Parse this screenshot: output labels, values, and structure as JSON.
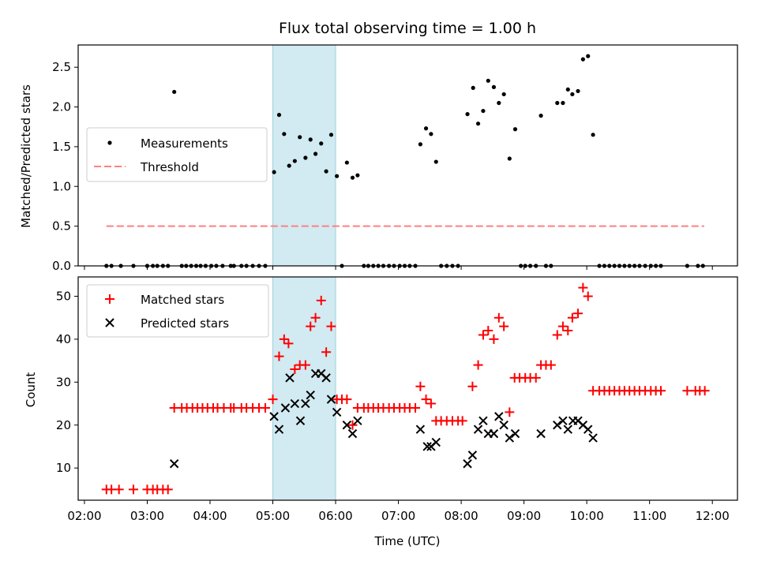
{
  "chart_data": [
    {
      "type": "scatter",
      "title": "Flux total observing time = 1.00 h",
      "ylabel": "Matched/Predicted stars",
      "xlabel": "",
      "xlim": [
        1.9,
        12.4
      ],
      "ylim": [
        0,
        2.78
      ],
      "yticks": [
        "0.0",
        "0.5",
        "1.0",
        "1.5",
        "2.0",
        "2.5"
      ],
      "highlight_span": {
        "from": 5.0,
        "to": 6.0,
        "color": "#add8e6"
      },
      "series": [
        {
          "name": "Measurements",
          "marker": "dot",
          "color": "#000000",
          "points": [
            [
              2.35,
              0
            ],
            [
              2.43,
              0
            ],
            [
              2.58,
              0
            ],
            [
              2.78,
              0
            ],
            [
              3.0,
              0
            ],
            [
              3.09,
              0
            ],
            [
              3.16,
              0
            ],
            [
              3.25,
              0
            ],
            [
              3.33,
              0
            ],
            [
              3.43,
              2.19
            ],
            [
              3.55,
              0
            ],
            [
              3.62,
              0
            ],
            [
              3.7,
              0
            ],
            [
              3.78,
              0
            ],
            [
              3.85,
              0
            ],
            [
              3.93,
              0
            ],
            [
              4.02,
              0
            ],
            [
              4.1,
              0
            ],
            [
              4.2,
              0
            ],
            [
              4.33,
              0
            ],
            [
              4.38,
              0
            ],
            [
              4.5,
              0
            ],
            [
              4.58,
              0
            ],
            [
              4.68,
              0
            ],
            [
              4.78,
              0
            ],
            [
              4.88,
              0
            ],
            [
              5.02,
              1.18
            ],
            [
              5.1,
              1.9
            ],
            [
              5.18,
              1.66
            ],
            [
              5.26,
              1.26
            ],
            [
              5.35,
              1.32
            ],
            [
              5.43,
              1.62
            ],
            [
              5.52,
              1.36
            ],
            [
              5.6,
              1.59
            ],
            [
              5.68,
              1.41
            ],
            [
              5.77,
              1.54
            ],
            [
              5.85,
              1.19
            ],
            [
              5.93,
              1.65
            ],
            [
              6.02,
              1.13
            ],
            [
              6.1,
              0
            ],
            [
              6.18,
              1.3
            ],
            [
              6.27,
              1.11
            ],
            [
              6.35,
              1.14
            ],
            [
              6.45,
              0
            ],
            [
              6.52,
              0
            ],
            [
              6.6,
              0
            ],
            [
              6.68,
              0
            ],
            [
              6.76,
              0
            ],
            [
              6.85,
              0
            ],
            [
              6.93,
              0
            ],
            [
              7.02,
              0
            ],
            [
              7.1,
              0
            ],
            [
              7.18,
              0
            ],
            [
              7.27,
              0
            ],
            [
              7.35,
              1.53
            ],
            [
              7.44,
              1.73
            ],
            [
              7.52,
              1.66
            ],
            [
              7.6,
              1.31
            ],
            [
              7.68,
              0
            ],
            [
              7.77,
              0
            ],
            [
              7.86,
              0
            ],
            [
              7.95,
              0
            ],
            [
              8.1,
              1.91
            ],
            [
              8.19,
              2.24
            ],
            [
              8.27,
              1.79
            ],
            [
              8.35,
              1.95
            ],
            [
              8.43,
              2.33
            ],
            [
              8.52,
              2.25
            ],
            [
              8.6,
              2.05
            ],
            [
              8.68,
              2.16
            ],
            [
              8.77,
              1.35
            ],
            [
              8.86,
              1.72
            ],
            [
              8.95,
              0
            ],
            [
              9.02,
              0
            ],
            [
              9.1,
              0
            ],
            [
              9.19,
              0
            ],
            [
              9.27,
              1.89
            ],
            [
              9.35,
              0
            ],
            [
              9.43,
              0
            ],
            [
              9.53,
              2.05
            ],
            [
              9.62,
              2.05
            ],
            [
              9.7,
              2.22
            ],
            [
              9.77,
              2.16
            ],
            [
              9.86,
              2.2
            ],
            [
              9.94,
              2.6
            ],
            [
              10.02,
              2.64
            ],
            [
              10.1,
              1.65
            ],
            [
              10.2,
              0
            ],
            [
              10.28,
              0
            ],
            [
              10.36,
              0
            ],
            [
              10.44,
              0
            ],
            [
              10.52,
              0
            ],
            [
              10.6,
              0
            ],
            [
              10.68,
              0
            ],
            [
              10.76,
              0
            ],
            [
              10.84,
              0
            ],
            [
              10.93,
              0
            ],
            [
              11.02,
              0
            ],
            [
              11.1,
              0
            ],
            [
              11.18,
              0
            ],
            [
              11.6,
              0
            ],
            [
              11.77,
              0
            ],
            [
              11.85,
              0
            ]
          ]
        },
        {
          "name": "Threshold",
          "marker": "dashed-line",
          "color": "#ff7f7f",
          "points": [
            [
              2.35,
              0.5
            ],
            [
              11.87,
              0.5
            ]
          ]
        }
      ],
      "legend_position": "center-left"
    },
    {
      "type": "scatter",
      "title": "",
      "xlabel": "Time (UTC)",
      "ylabel": "Count",
      "xlim": [
        1.9,
        12.4
      ],
      "ylim": [
        2.5,
        54.5
      ],
      "yticks": [
        "10",
        "20",
        "30",
        "40",
        "50"
      ],
      "xticks": [
        {
          "v": 2,
          "label": "02:00"
        },
        {
          "v": 3,
          "label": "03:00"
        },
        {
          "v": 4,
          "label": "04:00"
        },
        {
          "v": 5,
          "label": "05:00"
        },
        {
          "v": 6,
          "label": "06:00"
        },
        {
          "v": 7,
          "label": "07:00"
        },
        {
          "v": 8,
          "label": "08:00"
        },
        {
          "v": 9,
          "label": "09:00"
        },
        {
          "v": 10,
          "label": "10:00"
        },
        {
          "v": 11,
          "label": "11:00"
        },
        {
          "v": 12,
          "label": "12:00"
        }
      ],
      "highlight_span": {
        "from": 5.0,
        "to": 6.0,
        "color": "#add8e6"
      },
      "series": [
        {
          "name": "Matched stars",
          "marker": "plus",
          "color": "#ff0000",
          "points": [
            [
              2.35,
              5
            ],
            [
              2.43,
              5
            ],
            [
              2.55,
              5
            ],
            [
              2.78,
              5
            ],
            [
              3.0,
              5
            ],
            [
              3.09,
              5
            ],
            [
              3.16,
              5
            ],
            [
              3.25,
              5
            ],
            [
              3.33,
              5
            ],
            [
              3.43,
              24
            ],
            [
              3.55,
              24
            ],
            [
              3.63,
              24
            ],
            [
              3.72,
              24
            ],
            [
              3.8,
              24
            ],
            [
              3.88,
              24
            ],
            [
              3.96,
              24
            ],
            [
              4.05,
              24
            ],
            [
              4.12,
              24
            ],
            [
              4.22,
              24
            ],
            [
              4.33,
              24
            ],
            [
              4.38,
              24
            ],
            [
              4.5,
              24
            ],
            [
              4.58,
              24
            ],
            [
              4.68,
              24
            ],
            [
              4.78,
              24
            ],
            [
              4.88,
              24
            ],
            [
              5.0,
              26
            ],
            [
              5.1,
              36
            ],
            [
              5.18,
              40
            ],
            [
              5.25,
              39
            ],
            [
              5.35,
              33
            ],
            [
              5.43,
              34
            ],
            [
              5.52,
              34
            ],
            [
              5.6,
              43
            ],
            [
              5.68,
              45
            ],
            [
              5.77,
              49
            ],
            [
              5.85,
              37
            ],
            [
              5.93,
              43
            ],
            [
              6.02,
              26
            ],
            [
              6.1,
              26
            ],
            [
              6.18,
              26
            ],
            [
              6.27,
              20
            ],
            [
              6.35,
              24
            ],
            [
              6.45,
              24
            ],
            [
              6.52,
              24
            ],
            [
              6.6,
              24
            ],
            [
              6.68,
              24
            ],
            [
              6.76,
              24
            ],
            [
              6.85,
              24
            ],
            [
              6.93,
              24
            ],
            [
              7.02,
              24
            ],
            [
              7.1,
              24
            ],
            [
              7.18,
              24
            ],
            [
              7.27,
              24
            ],
            [
              7.35,
              29
            ],
            [
              7.44,
              26
            ],
            [
              7.52,
              25
            ],
            [
              7.6,
              21
            ],
            [
              7.68,
              21
            ],
            [
              7.77,
              21
            ],
            [
              7.86,
              21
            ],
            [
              7.95,
              21
            ],
            [
              8.02,
              21
            ],
            [
              8.18,
              29
            ],
            [
              8.27,
              34
            ],
            [
              8.35,
              41
            ],
            [
              8.43,
              42
            ],
            [
              8.52,
              40
            ],
            [
              8.6,
              45
            ],
            [
              8.68,
              43
            ],
            [
              8.77,
              23
            ],
            [
              8.85,
              31
            ],
            [
              8.93,
              31
            ],
            [
              9.02,
              31
            ],
            [
              9.1,
              31
            ],
            [
              9.19,
              31
            ],
            [
              9.27,
              34
            ],
            [
              9.35,
              34
            ],
            [
              9.43,
              34
            ],
            [
              9.53,
              41
            ],
            [
              9.62,
              43
            ],
            [
              9.7,
              42
            ],
            [
              9.77,
              45
            ],
            [
              9.86,
              46
            ],
            [
              9.94,
              52
            ],
            [
              10.02,
              50
            ],
            [
              10.1,
              28
            ],
            [
              10.2,
              28
            ],
            [
              10.28,
              28
            ],
            [
              10.36,
              28
            ],
            [
              10.44,
              28
            ],
            [
              10.52,
              28
            ],
            [
              10.6,
              28
            ],
            [
              10.68,
              28
            ],
            [
              10.76,
              28
            ],
            [
              10.84,
              28
            ],
            [
              10.93,
              28
            ],
            [
              11.02,
              28
            ],
            [
              11.1,
              28
            ],
            [
              11.18,
              28
            ],
            [
              11.6,
              28
            ],
            [
              11.73,
              28
            ],
            [
              11.8,
              28
            ],
            [
              11.88,
              28
            ]
          ]
        },
        {
          "name": "Predicted stars",
          "marker": "x",
          "color": "#000000",
          "points": [
            [
              3.43,
              11
            ],
            [
              5.02,
              22
            ],
            [
              5.1,
              19
            ],
            [
              5.2,
              24
            ],
            [
              5.27,
              31
            ],
            [
              5.35,
              25
            ],
            [
              5.44,
              21
            ],
            [
              5.52,
              25
            ],
            [
              5.6,
              27
            ],
            [
              5.68,
              32
            ],
            [
              5.77,
              32
            ],
            [
              5.85,
              31
            ],
            [
              5.93,
              26
            ],
            [
              6.02,
              23
            ],
            [
              6.18,
              20
            ],
            [
              6.27,
              18
            ],
            [
              6.35,
              21
            ],
            [
              7.35,
              19
            ],
            [
              7.46,
              15
            ],
            [
              7.52,
              15
            ],
            [
              7.6,
              16
            ],
            [
              8.1,
              11
            ],
            [
              8.18,
              13
            ],
            [
              8.27,
              19
            ],
            [
              8.35,
              21
            ],
            [
              8.43,
              18
            ],
            [
              8.52,
              18
            ],
            [
              8.6,
              22
            ],
            [
              8.68,
              20
            ],
            [
              8.77,
              17
            ],
            [
              8.86,
              18
            ],
            [
              9.27,
              18
            ],
            [
              9.53,
              20
            ],
            [
              9.62,
              21
            ],
            [
              9.7,
              19
            ],
            [
              9.78,
              21
            ],
            [
              9.86,
              21
            ],
            [
              9.94,
              20
            ],
            [
              10.02,
              19
            ],
            [
              10.1,
              17
            ]
          ]
        }
      ],
      "legend_position": "top-left"
    }
  ]
}
